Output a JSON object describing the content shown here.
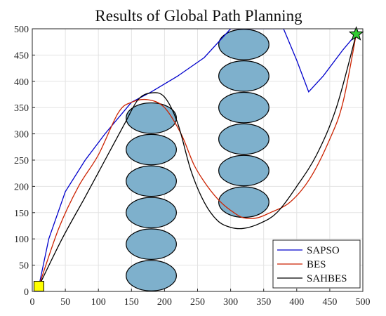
{
  "chart_data": {
    "type": "line",
    "title": "Results of Global Path Planning",
    "xlabel": "",
    "ylabel": "",
    "xlim": [
      0,
      500
    ],
    "ylim": [
      0,
      500
    ],
    "xticks": [
      0,
      50,
      100,
      150,
      200,
      250,
      300,
      350,
      400,
      450,
      500
    ],
    "yticks": [
      0,
      50,
      100,
      150,
      200,
      250,
      300,
      350,
      400,
      450,
      500
    ],
    "grid": true,
    "legend_position": "bottom-right",
    "start": {
      "x": 10,
      "y": 10,
      "marker": "square",
      "color": "#ffff00"
    },
    "goal": {
      "x": 490,
      "y": 490,
      "marker": "star",
      "color": "#33cc33"
    },
    "obstacles": {
      "color": "#7eb0cc",
      "rx": 38,
      "ry": 29,
      "centers": [
        {
          "x": 180,
          "y": 30
        },
        {
          "x": 180,
          "y": 90
        },
        {
          "x": 180,
          "y": 150
        },
        {
          "x": 180,
          "y": 210
        },
        {
          "x": 180,
          "y": 270
        },
        {
          "x": 180,
          "y": 330
        },
        {
          "x": 320,
          "y": 170
        },
        {
          "x": 320,
          "y": 230
        },
        {
          "x": 320,
          "y": 290
        },
        {
          "x": 320,
          "y": 350
        },
        {
          "x": 320,
          "y": 410
        },
        {
          "x": 320,
          "y": 470
        }
      ]
    },
    "series": [
      {
        "name": "SAPSO",
        "color": "#0000cc",
        "points": [
          [
            10,
            10
          ],
          [
            25,
            100
          ],
          [
            50,
            190
          ],
          [
            80,
            250
          ],
          [
            110,
            300
          ],
          [
            150,
            360
          ],
          [
            180,
            380
          ],
          [
            220,
            410
          ],
          [
            260,
            445
          ],
          [
            300,
            500
          ],
          [
            380,
            500
          ],
          [
            400,
            440
          ],
          [
            418,
            380
          ],
          [
            440,
            410
          ],
          [
            470,
            460
          ],
          [
            490,
            490
          ]
        ]
      },
      {
        "name": "BES",
        "color": "#cc2200",
        "points": [
          [
            10,
            10
          ],
          [
            40,
            120
          ],
          [
            70,
            200
          ],
          [
            100,
            260
          ],
          [
            130,
            340
          ],
          [
            150,
            360
          ],
          [
            175,
            365
          ],
          [
            200,
            350
          ],
          [
            225,
            300
          ],
          [
            245,
            240
          ],
          [
            265,
            200
          ],
          [
            285,
            170
          ],
          [
            305,
            150
          ],
          [
            320,
            140
          ],
          [
            340,
            140
          ],
          [
            360,
            150
          ],
          [
            390,
            170
          ],
          [
            420,
            215
          ],
          [
            450,
            290
          ],
          [
            470,
            360
          ],
          [
            490,
            490
          ]
        ]
      },
      {
        "name": "SAHBES",
        "color": "#000000",
        "points": [
          [
            10,
            10
          ],
          [
            45,
            100
          ],
          [
            80,
            180
          ],
          [
            110,
            250
          ],
          [
            140,
            320
          ],
          [
            160,
            365
          ],
          [
            180,
            378
          ],
          [
            200,
            370
          ],
          [
            220,
            320
          ],
          [
            240,
            230
          ],
          [
            260,
            170
          ],
          [
            280,
            135
          ],
          [
            300,
            122
          ],
          [
            320,
            120
          ],
          [
            345,
            130
          ],
          [
            370,
            150
          ],
          [
            400,
            200
          ],
          [
            430,
            260
          ],
          [
            460,
            350
          ],
          [
            490,
            490
          ]
        ]
      }
    ]
  }
}
